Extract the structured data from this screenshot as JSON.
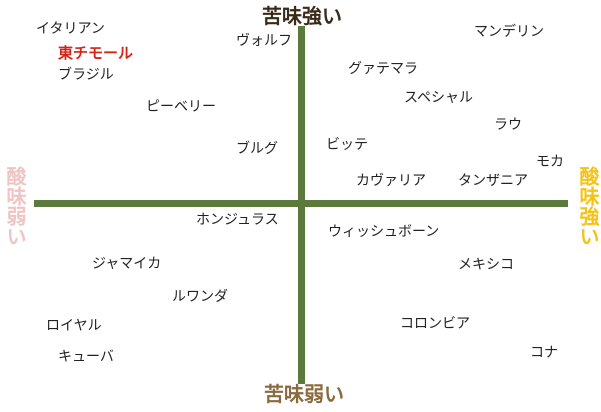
{
  "axes": {
    "top_label": "苦味強い",
    "bottom_label": "苦味弱い",
    "left_label": "酸味弱い",
    "right_label": "酸味強い",
    "line_color": "#5b7a3c",
    "top_color": "#3a2a18",
    "bottom_color": "#8a6a3e",
    "left_color": "#f0c4c4",
    "right_color": "#f5c218"
  },
  "highlight_color": "#d42418",
  "coffees": [
    {
      "name": "イタリアン",
      "highlight": false
    },
    {
      "name": "東チモール",
      "highlight": true
    },
    {
      "name": "ブラジル",
      "highlight": false
    },
    {
      "name": "ヴォルフ",
      "highlight": false
    },
    {
      "name": "マンデリン",
      "highlight": false
    },
    {
      "name": "グァテマラ",
      "highlight": false
    },
    {
      "name": "スペシャル",
      "highlight": false
    },
    {
      "name": "ピーベリー",
      "highlight": false
    },
    {
      "name": "ラウ",
      "highlight": false
    },
    {
      "name": "ブルグ",
      "highlight": false
    },
    {
      "name": "ビッテ",
      "highlight": false
    },
    {
      "name": "モカ",
      "highlight": false
    },
    {
      "name": "カヴァリア",
      "highlight": false
    },
    {
      "name": "タンザニア",
      "highlight": false
    },
    {
      "name": "ホンジュラス",
      "highlight": false
    },
    {
      "name": "ウィッシュボーン",
      "highlight": false
    },
    {
      "name": "ジャマイカ",
      "highlight": false
    },
    {
      "name": "メキシコ",
      "highlight": false
    },
    {
      "name": "ルワンダ",
      "highlight": false
    },
    {
      "name": "ロイヤル",
      "highlight": false
    },
    {
      "name": "コロンビア",
      "highlight": false
    },
    {
      "name": "キューバ",
      "highlight": false
    },
    {
      "name": "コナ",
      "highlight": false
    }
  ]
}
